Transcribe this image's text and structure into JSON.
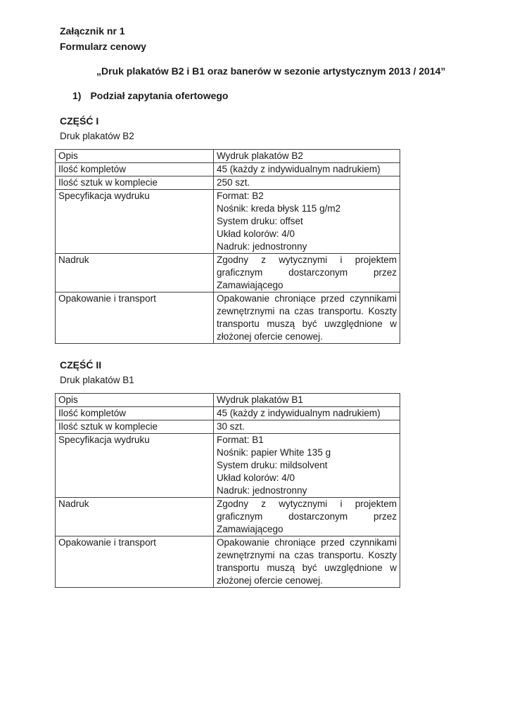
{
  "header": {
    "attachment": "Załącznik nr 1",
    "form_name": "Formularz cenowy",
    "title": "„Druk plakatów B2 i B1 oraz banerów w sezonie artystycznym 2013 / 2014”",
    "list_marker": "1)",
    "list_text": "Podział zapytania ofertowego"
  },
  "sections": [
    {
      "heading": "CZĘŚĆ I",
      "subheading": "Druk plakatów B2",
      "table": {
        "rows": [
          {
            "label": "Opis",
            "value": "Wydruk plakatów B2"
          },
          {
            "label": "Ilość kompletów",
            "value": "45 (każdy z indywidualnym nadrukiem)"
          },
          {
            "label": "Ilość sztuk w komplecie",
            "value": "250 szt."
          },
          {
            "label": "Specyfikacja wydruku",
            "lines": [
              "Format: B2",
              "Nośnik: kreda błysk 115 g/m2",
              "System druku: offset",
              "Układ kolorów: 4/0",
              "Nadruk: jednostronny"
            ]
          },
          {
            "label": "Nadruk",
            "value": "Zgodny z wytycznymi i projektem graficznym dostarczonym przez Zamawiającego"
          },
          {
            "label": "Opakowanie i transport",
            "value": "Opakowanie chroniące przed czynnikami zewnętrznymi na czas transportu. Koszty transportu muszą być uwzględnione w złożonej ofercie cenowej."
          }
        ]
      }
    },
    {
      "heading": "CZĘŚĆ II",
      "subheading": "Druk plakatów B1",
      "table": {
        "rows": [
          {
            "label": "Opis",
            "value": "Wydruk plakatów B1"
          },
          {
            "label": "Ilość kompletów",
            "value": "45 (każdy z indywidualnym nadrukiem)"
          },
          {
            "label": "Ilość sztuk w komplecie",
            "value": "30 szt."
          },
          {
            "label": "Specyfikacja wydruku",
            "lines": [
              "Format: B1",
              "Nośnik: papier White 135 g",
              "System druku: mildsolvent",
              "Układ kolorów: 4/0",
              "Nadruk: jednostronny"
            ]
          },
          {
            "label": "Nadruk",
            "value": "Zgodny z wytycznymi i projektem graficznym dostarczonym przez Zamawiającego"
          },
          {
            "label": "Opakowanie i transport",
            "value": "Opakowanie chroniące przed czynnikami zewnętrznymi na czas transportu. Koszty transportu muszą być uwzględnione w złożonej ofercie cenowej."
          }
        ]
      }
    }
  ],
  "colors": {
    "text": "#1a1a1a",
    "table_border": "#404040",
    "page_background": "#ffffff"
  }
}
